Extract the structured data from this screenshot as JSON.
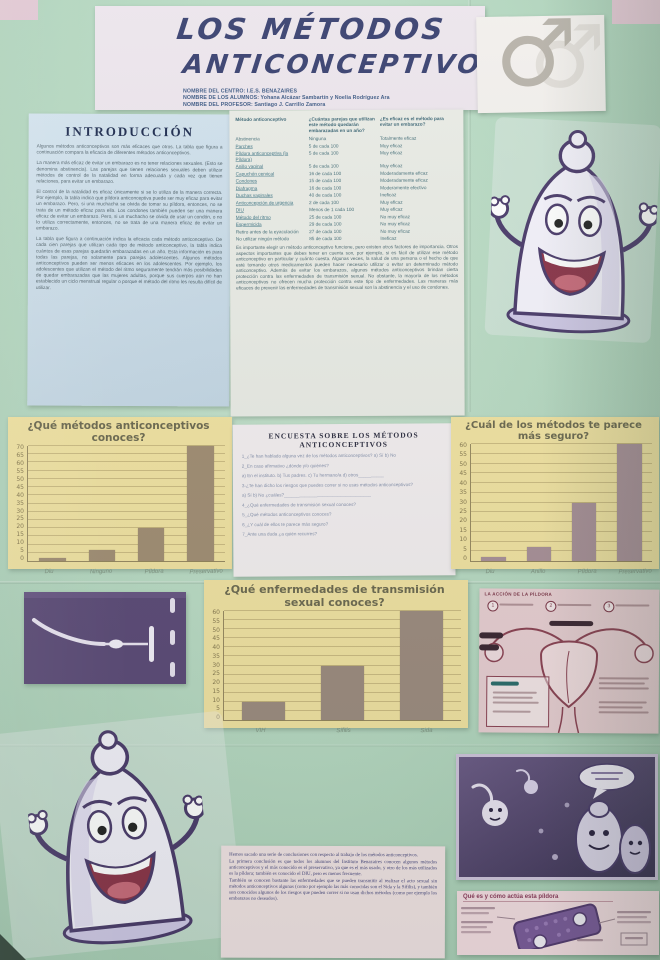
{
  "poster": {
    "title_line1": "LOS MÉTODOS",
    "title_line2": "ANTICONCEPTIVOS",
    "meta_lines": [
      "NOMBRE DEL CENTRO: I.E.S. BENAZAIRES",
      "NOMBRE DE LOS ALUMNOS: Yohana Alcázar Sambartín y Noelia Rodríguez Ara",
      "NOMBRE DEL PROFESOR: Santiago J. Carrillo Zamora"
    ]
  },
  "icons": {
    "male_symbol": "♂"
  },
  "intro": {
    "title": "INTRODUCCIÓN",
    "paragraphs": [
      "Algunos métodos anticonceptivos son más eficaces que otros. La tabla que figura a continuación compara la eficacia de diferentes métodos anticonceptivos.",
      "La manera más eficaz de evitar un embarazo es no tener relaciones sexuales. (Esto se denomina abstinencia). Las parejas que tienen relaciones sexuales deben utilizar métodos de control de la natalidad en forma adecuada y cada vez que tienen relaciones, para evitar un embarazo.",
      "El control de la natalidad es eficaz únicamente si se lo utiliza de la manera correcta. Por ejemplo, la tabla indica que píldora anticonceptiva puede ser muy eficaz para evitar un embarazo. Pero, si una muchacha se olvida de tomar su píldora, entonces, no se trata de un método eficaz para ella. Los condones también pueden ser una manera eficaz de evitar un embarazo. Pero, si un muchacho se olvida de usar un condón, o no lo utiliza correctamente, entonces, no se trata de una manera eficaz de evitar un embarazo.",
      "La tabla que figura a continuación indica la eficacia cada método anticonceptivo. De cada cien parejas que utilizan cada tipo de método anticonceptivo, la tabla indica cuántos de esas parejas quedarán embarazadas en un año. Esta información es para todas las parejas, no solamente para parejas adolescentes. Algunos métodos anticonceptivos pueden ser menos eficaces en los adolescentes. Por ejemplo, los adolescentes que utilizan el método del ritmo seguramente tendrán más posibilidades de quedar embarazadas que las mujeres adultas, porque sus cuerpos aún no han establecido un ciclo menstrual regular o porque el método del ritmo les resulta difícil de utilizar."
    ]
  },
  "methods_table": {
    "headers": [
      "Método anticonceptivo",
      "¿Cuántas parejas que utilizan este método quedarán embarazadas en un año?",
      "¿Es eficaz es el método para evitar un embarazo?"
    ],
    "rows": [
      {
        "method": "Abstinencia",
        "pregnancies": "Ninguna",
        "efficacy": "Totalmente eficaz",
        "link": false
      },
      {
        "method": "Parches",
        "pregnancies": "5 de cada 100",
        "efficacy": "Muy eficaz",
        "link": true
      },
      {
        "method": "Píldora anticonceptiva (la Píldora)",
        "pregnancies": "5 de cada 100",
        "efficacy": "Muy eficaz",
        "link": true
      },
      {
        "method": "Anillo vaginal",
        "pregnancies": "5 de cada 100",
        "efficacy": "Muy eficaz",
        "link": true
      },
      {
        "method": "Capuchón cervical",
        "pregnancies": "16 de cada 100",
        "efficacy": "Moderadamente eficaz",
        "link": true
      },
      {
        "method": "Condones",
        "pregnancies": "15 de cada 100",
        "efficacy": "Moderadamente eficaz",
        "link": true
      },
      {
        "method": "Diafragma",
        "pregnancies": "16 de cada 100",
        "efficacy": "Moderamente efectivo",
        "link": true
      },
      {
        "method": "Duchas vaginales",
        "pregnancies": "40 de cada 100",
        "efficacy": "Ineficaz",
        "link": true
      },
      {
        "method": "Anticoncepción de urgencia",
        "pregnancies": "2 de cada 100",
        "efficacy": "Muy eficaz",
        "link": true
      },
      {
        "method": "DIU",
        "pregnancies": "Menos de 1 cada 100",
        "efficacy": "Muy eficaz",
        "link": true
      },
      {
        "method": "Método del ritmo",
        "pregnancies": "25 de cada 100",
        "efficacy": "No muy eficaz",
        "link": true
      },
      {
        "method": "Espermicida",
        "pregnancies": "29 de cada 100",
        "efficacy": "No muy eficaz",
        "link": true
      },
      {
        "method": "Retiro antes de la eyaculación",
        "pregnancies": "27 de cada 100",
        "efficacy": "No muy eficaz",
        "link": false
      },
      {
        "method": "No utilizar ningún método",
        "pregnancies": "85 de cada 100",
        "efficacy": "Ineficaz",
        "link": false
      }
    ],
    "footer_paragraph": "Es importante elegir un método anticonceptivo funcione, pero existen otros factores de importancia. Otros aspectos importantes que debes tener en cuenta son, por ejemplo, si es fácil de utilizar ese método anticonceptivo en particular y cuánto cuesta. Algunas veces, la salud de una persona o el hecho de que esté tomando otros medicamentos pueden hacer necesario utilizar o evitar un determinado método anticonceptivo. Además de evitar los embarazos, algunos métodos anticonceptivos brindan cierta protección contra las enfermedades de transmisión sexual. No obstante, la mayoría de los métodos anticonceptivos no ofrecen mucha protección contra este tipo de enfermedades. Las maneras más eficaces de prevenir las enfermedades de transmisión sexual son la abstinencia y el uso de condones."
  },
  "survey": {
    "title": "ENCUESTA SOBRE LOS MÉTODOS ANTICONCEPTIVOS",
    "questions": [
      "1_¿Te han hablado alguna vez de los métodos anticonceptivos? a) Sí    b) No",
      "2_En caso afirmativo ¿dónde y/o quiénes?",
      "a) En el instituto.    b) Tus padres.  c) Tu hermano/a  d) otros__________",
      "3-¿Te han dicho los riesgos que puedes correr si no usas métodos anticonceptivos?",
      "a) Sí     b) No       ¿cuáles?__________________________________",
      "4_¿Qué enfermedades de transmisión sexual conoces?",
      "5_¿Qué métodos anticonceptivos conoces?",
      "6_¿Y cuál de ellos te parece más seguro?",
      "7_Ante una duda ¿a quién recurres?"
    ]
  },
  "chart_data": [
    {
      "type": "bar",
      "title": "¿Qué métodos anticonceptivos conoces?",
      "categories": [
        "Diu",
        "Ninguno",
        "Píldora",
        "Preservativo"
      ],
      "values": [
        2,
        7,
        20,
        70
      ],
      "xlabel": "",
      "ylabel": "",
      "ylim": [
        0,
        70
      ],
      "ytick_step": 5,
      "grid": true,
      "legend": false,
      "bar_color": "#a08c72",
      "paper_color": "#f1e2a1"
    },
    {
      "type": "bar",
      "title": "¿Cuál de los métodos te parece más seguro?",
      "categories": [
        "Diu",
        "Anillo",
        "Píldora",
        "Preservativo"
      ],
      "values": [
        2,
        7,
        30,
        60
      ],
      "xlabel": "",
      "ylabel": "",
      "ylim": [
        0,
        60
      ],
      "ytick_step": 5,
      "grid": true,
      "legend": false,
      "bar_color": "#a88f97",
      "paper_color": "#f1e2a1"
    },
    {
      "type": "bar",
      "title": "¿Qué enfermedades de transmisión sexual conoces?",
      "categories": [
        "VIH",
        "Sífilis",
        "Sida"
      ],
      "values": [
        10,
        30,
        60
      ],
      "xlabel": "",
      "ylabel": "",
      "ylim": [
        0,
        60
      ],
      "ytick_step": 5,
      "grid": true,
      "legend": false,
      "bar_color": "#9c8a7e",
      "paper_color": "#f1e2a1"
    }
  ],
  "anatomy_panel": {
    "title": "LA ACCIÓN DE LA PÍLDORA",
    "steps": [
      "1",
      "2",
      "3"
    ]
  },
  "conclusions": {
    "paragraphs": [
      "Hemos sacado una serie de conclusiones con respecto al trabajo de los métodos anticonceptivos.",
      "La primera conclusión es que todos los alumnos del Instituto Benazaires conocen algunos métodos anticonceptivos y el más conocido es el preservativo, ya que es el más usado, y otro de los más utilizados es la píldora; también es conocido el DIU, pero es menos frecuente.",
      "También se conocen bastante las enfermedades que se pueden transmitir al realizar el acto sexual sin métodos anticonceptivos algunas (como por ejemplo las más conocidas son el Sida y la Sífilis), y también son conocidos algunos de los riesgos que pueden correr si no usan dichos métodos (como por ejemplo los embarazos no deseados)."
    ]
  },
  "pill_note": {
    "title": "Qué es y cómo actúa esta píldora"
  },
  "colors": {
    "poster_green": "#b7d9c2",
    "chart_paper": "#f1e2a1",
    "intro_paper_blue": "#cbdce8",
    "pink_paper": "#f1e3e4",
    "title_ink": "#38406f",
    "iud_photo_purple": "#5a4876"
  }
}
